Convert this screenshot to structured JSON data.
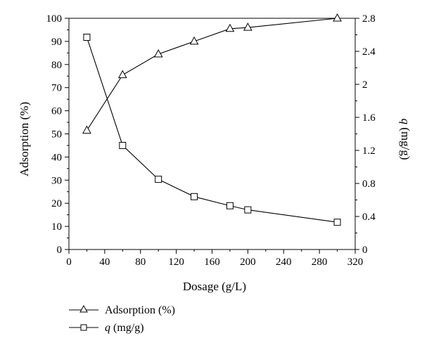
{
  "chart_data": {
    "type": "line",
    "xlabel": "Dosage (g/L)",
    "ylabel_left": "Adsorption (%)",
    "ylabel_right_italic": "q",
    "ylabel_right_unit": "(mg/g)",
    "xlim": [
      0,
      320
    ],
    "ylim_left": [
      0,
      100
    ],
    "ylim_right": [
      0,
      2.8
    ],
    "x_ticks": [
      "0",
      "40",
      "80",
      "120",
      "160",
      "200",
      "240",
      "280",
      "320"
    ],
    "y_left_ticks": [
      "0",
      "10",
      "20",
      "30",
      "40",
      "50",
      "60",
      "70",
      "80",
      "90",
      "100"
    ],
    "y_right_ticks": [
      "0",
      "0.4",
      "0.8",
      "1.2",
      "1.6",
      "2",
      "2.4",
      "2.8"
    ],
    "series": [
      {
        "name": "Adsorption (%)",
        "axis": "left",
        "marker": "triangle",
        "x": [
          20,
          60,
          100,
          140,
          180,
          200,
          300
        ],
        "y": [
          51.5,
          75.5,
          84.5,
          90,
          95.5,
          96,
          100
        ]
      },
      {
        "name": "(mg/g)",
        "name_italic": "q",
        "axis": "right",
        "marker": "square",
        "x": [
          20,
          60,
          100,
          140,
          180,
          200,
          300
        ],
        "y": [
          2.57,
          1.26,
          0.85,
          0.64,
          0.53,
          0.48,
          0.33
        ]
      }
    ],
    "legend_position": "bottom-left",
    "grid": false
  }
}
